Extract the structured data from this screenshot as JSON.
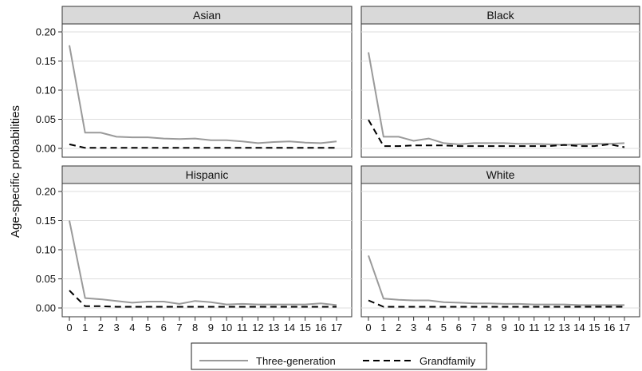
{
  "chart_data": {
    "type": "line",
    "ylabel": "Age-specific probabilities",
    "xlabel": "",
    "x": [
      0,
      1,
      2,
      3,
      4,
      5,
      6,
      7,
      8,
      9,
      10,
      11,
      12,
      13,
      14,
      15,
      16,
      17
    ],
    "ylim": [
      0,
      0.2
    ],
    "yticks": [
      "0.00",
      "0.05",
      "0.10",
      "0.15",
      "0.20"
    ],
    "xticks": [
      "0",
      "1",
      "2",
      "3",
      "4",
      "5",
      "6",
      "7",
      "8",
      "9",
      "10",
      "11",
      "12",
      "13",
      "14",
      "15",
      "16",
      "17"
    ],
    "grid": true,
    "legend": {
      "position": "bottom",
      "items": [
        {
          "name": "Three-generation",
          "color": "#9a9a9a",
          "dash": "solid"
        },
        {
          "name": "Grandfamily",
          "color": "#000000",
          "dash": "dashed"
        }
      ]
    },
    "panels": [
      {
        "title": "Asian",
        "series": [
          {
            "name": "Three-generation",
            "values": [
              0.177,
              0.027,
              0.027,
              0.02,
              0.019,
              0.019,
              0.017,
              0.016,
              0.017,
              0.014,
              0.014,
              0.012,
              0.009,
              0.011,
              0.012,
              0.01,
              0.009,
              0.012
            ]
          },
          {
            "name": "Grandfamily",
            "values": [
              0.007,
              0.001,
              0.001,
              0.001,
              0.001,
              0.001,
              0.001,
              0.001,
              0.001,
              0.001,
              0.001,
              0.001,
              0.001,
              0.001,
              0.001,
              0.001,
              0.001,
              0.001
            ]
          }
        ]
      },
      {
        "title": "Black",
        "series": [
          {
            "name": "Three-generation",
            "values": [
              0.165,
              0.02,
              0.02,
              0.013,
              0.017,
              0.009,
              0.007,
              0.009,
              0.009,
              0.009,
              0.008,
              0.008,
              0.007,
              0.006,
              0.007,
              0.008,
              0.008,
              0.009
            ]
          },
          {
            "name": "Grandfamily",
            "values": [
              0.049,
              0.004,
              0.004,
              0.005,
              0.005,
              0.005,
              0.004,
              0.004,
              0.004,
              0.004,
              0.004,
              0.004,
              0.004,
              0.006,
              0.004,
              0.004,
              0.007,
              0.002
            ]
          }
        ]
      },
      {
        "title": "Hispanic",
        "series": [
          {
            "name": "Three-generation",
            "values": [
              0.15,
              0.017,
              0.015,
              0.012,
              0.009,
              0.011,
              0.011,
              0.007,
              0.012,
              0.01,
              0.006,
              0.007,
              0.006,
              0.006,
              0.006,
              0.006,
              0.008,
              0.005
            ]
          },
          {
            "name": "Grandfamily",
            "values": [
              0.03,
              0.003,
              0.003,
              0.002,
              0.002,
              0.002,
              0.002,
              0.002,
              0.002,
              0.002,
              0.002,
              0.002,
              0.002,
              0.002,
              0.002,
              0.002,
              0.002,
              0.002
            ]
          }
        ]
      },
      {
        "title": "White",
        "series": [
          {
            "name": "Three-generation",
            "values": [
              0.09,
              0.016,
              0.014,
              0.013,
              0.013,
              0.01,
              0.009,
              0.008,
              0.008,
              0.007,
              0.007,
              0.006,
              0.006,
              0.006,
              0.005,
              0.005,
              0.005,
              0.005
            ]
          },
          {
            "name": "Grandfamily",
            "values": [
              0.013,
              0.002,
              0.002,
              0.002,
              0.002,
              0.002,
              0.002,
              0.002,
              0.002,
              0.002,
              0.002,
              0.002,
              0.002,
              0.002,
              0.002,
              0.002,
              0.002,
              0.002
            ]
          }
        ]
      }
    ]
  }
}
